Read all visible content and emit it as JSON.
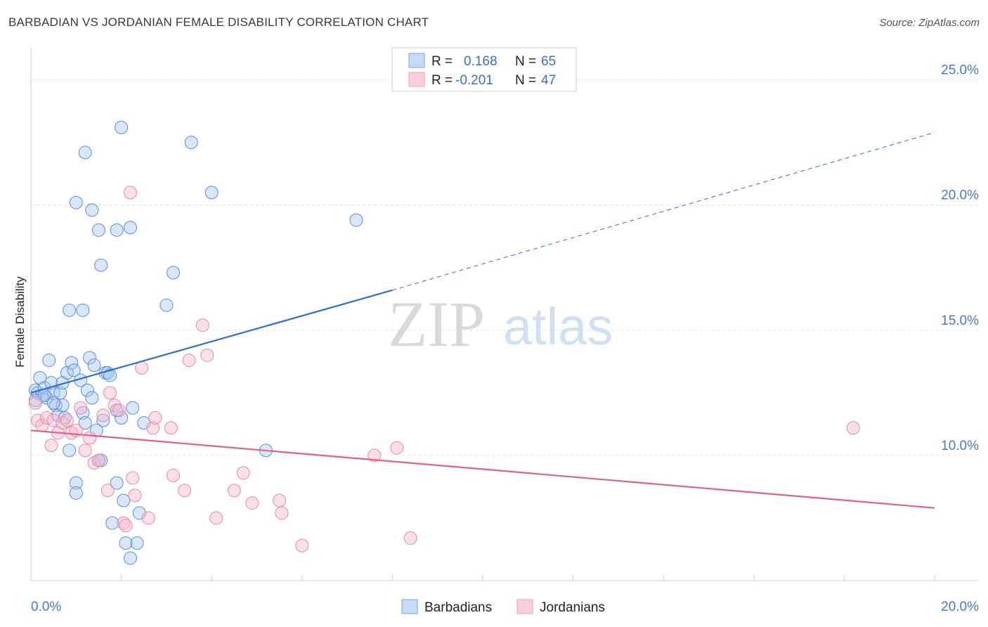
{
  "title": "BARBADIAN VS JORDANIAN FEMALE DISABILITY CORRELATION CHART",
  "source": "Source: ZipAtlas.com",
  "watermark": {
    "zip": "ZIP",
    "atlas": "atlas"
  },
  "legend": {
    "rows": [
      {
        "r_label": "R =",
        "r_value": "0.168",
        "n_label": "N =",
        "n_value": "65",
        "color": "#a9c8f0"
      },
      {
        "r_label": "R =",
        "r_value": "-0.201",
        "n_label": "N =",
        "n_value": "47",
        "color": "#f6b8cc"
      }
    ]
  },
  "bottom_legend": [
    "Barbadians",
    "Jordanians"
  ],
  "chart_data": {
    "type": "scatter",
    "ylabel": "Female Disability",
    "xlim": [
      0,
      20
    ],
    "ylim": [
      5,
      26
    ],
    "x_tick_labels": [
      {
        "value": 0,
        "label": "0.0%"
      },
      {
        "value": 20,
        "label": "20.0%"
      }
    ],
    "y_tick_labels": [
      {
        "value": 10,
        "label": "10.0%"
      },
      {
        "value": 15,
        "label": "15.0%"
      },
      {
        "value": 20,
        "label": "20.0%"
      },
      {
        "value": 25,
        "label": "25.0%"
      }
    ],
    "grid": "horizontal dashed",
    "series": [
      {
        "name": "Barbadians",
        "color": "#a9c8f0",
        "stroke": "#5b8ed8",
        "trend_color": "#2f6fcc",
        "trend": {
          "x0": 0,
          "y0": 12.5,
          "x1": 8,
          "y1": 16.6,
          "dash_to_x": 20,
          "dash_to_y": 22.9
        },
        "points": [
          [
            0.1,
            12.6
          ],
          [
            0.15,
            12.5
          ],
          [
            0.2,
            13.1
          ],
          [
            0.25,
            12.4
          ],
          [
            0.3,
            12.7
          ],
          [
            0.35,
            12.3
          ],
          [
            0.4,
            13.8
          ],
          [
            0.45,
            12.9
          ],
          [
            0.5,
            12.5
          ],
          [
            0.55,
            12.0
          ],
          [
            0.6,
            11.6
          ],
          [
            0.65,
            12.5
          ],
          [
            0.7,
            12.9
          ],
          [
            0.75,
            11.5
          ],
          [
            0.8,
            13.3
          ],
          [
            0.85,
            10.2
          ],
          [
            0.9,
            13.7
          ],
          [
            0.95,
            13.4
          ],
          [
            1.0,
            8.9
          ],
          [
            1.0,
            8.5
          ],
          [
            1.1,
            13.0
          ],
          [
            1.15,
            11.7
          ],
          [
            1.2,
            11.3
          ],
          [
            1.25,
            12.6
          ],
          [
            1.3,
            13.9
          ],
          [
            1.35,
            12.3
          ],
          [
            1.4,
            13.6
          ],
          [
            1.45,
            11.0
          ],
          [
            1.5,
            9.8
          ],
          [
            1.55,
            9.8
          ],
          [
            1.6,
            11.4
          ],
          [
            1.65,
            13.3
          ],
          [
            1.7,
            13.3
          ],
          [
            1.75,
            13.2
          ],
          [
            1.8,
            7.3
          ],
          [
            1.9,
            8.9
          ],
          [
            2.0,
            11.5
          ],
          [
            2.05,
            8.2
          ],
          [
            2.1,
            6.5
          ],
          [
            2.2,
            5.9
          ],
          [
            2.25,
            11.9
          ],
          [
            2.35,
            6.5
          ],
          [
            2.4,
            7.7
          ],
          [
            2.5,
            11.3
          ],
          [
            1.2,
            22.1
          ],
          [
            2.0,
            23.1
          ],
          [
            3.55,
            22.5
          ],
          [
            1.35,
            19.8
          ],
          [
            2.2,
            19.1
          ],
          [
            1.5,
            19.0
          ],
          [
            1.9,
            19.0
          ],
          [
            4.0,
            20.5
          ],
          [
            7.2,
            19.4
          ],
          [
            1.55,
            17.6
          ],
          [
            3.15,
            17.3
          ],
          [
            0.85,
            15.8
          ],
          [
            1.15,
            15.8
          ],
          [
            3.0,
            16.0
          ],
          [
            5.2,
            10.2
          ],
          [
            0.1,
            12.2
          ],
          [
            0.3,
            12.4
          ],
          [
            0.7,
            12.0
          ],
          [
            1.9,
            11.8
          ],
          [
            1.0,
            20.1
          ],
          [
            0.5,
            12.1
          ]
        ]
      },
      {
        "name": "Jordanians",
        "color": "#f6b8cc",
        "stroke": "#e88aa8",
        "trend_color": "#e0608c",
        "trend": {
          "x0": 0,
          "y0": 11.0,
          "x1": 20,
          "y1": 7.9
        },
        "points": [
          [
            0.1,
            12.1
          ],
          [
            0.15,
            11.4
          ],
          [
            0.25,
            11.2
          ],
          [
            0.35,
            11.5
          ],
          [
            0.45,
            10.4
          ],
          [
            0.5,
            11.4
          ],
          [
            0.6,
            10.9
          ],
          [
            0.7,
            11.3
          ],
          [
            0.8,
            11.4
          ],
          [
            0.9,
            10.9
          ],
          [
            1.0,
            11.0
          ],
          [
            1.1,
            11.9
          ],
          [
            1.2,
            10.2
          ],
          [
            1.3,
            10.7
          ],
          [
            1.4,
            9.7
          ],
          [
            1.5,
            9.8
          ],
          [
            1.6,
            11.6
          ],
          [
            1.7,
            8.6
          ],
          [
            1.75,
            12.5
          ],
          [
            1.85,
            12.0
          ],
          [
            1.95,
            11.8
          ],
          [
            2.05,
            7.3
          ],
          [
            2.1,
            7.2
          ],
          [
            2.25,
            9.1
          ],
          [
            2.3,
            8.4
          ],
          [
            2.45,
            13.5
          ],
          [
            2.6,
            7.5
          ],
          [
            2.7,
            11.1
          ],
          [
            2.75,
            11.5
          ],
          [
            3.1,
            11.1
          ],
          [
            3.15,
            9.2
          ],
          [
            3.4,
            8.6
          ],
          [
            3.5,
            13.8
          ],
          [
            3.8,
            15.2
          ],
          [
            3.9,
            14.0
          ],
          [
            4.1,
            7.5
          ],
          [
            4.5,
            8.6
          ],
          [
            4.7,
            9.3
          ],
          [
            4.9,
            8.1
          ],
          [
            5.5,
            8.2
          ],
          [
            5.55,
            7.7
          ],
          [
            6.0,
            6.4
          ],
          [
            7.6,
            10.0
          ],
          [
            8.1,
            10.3
          ],
          [
            8.4,
            6.7
          ],
          [
            18.2,
            11.1
          ],
          [
            2.2,
            20.5
          ]
        ]
      }
    ]
  }
}
